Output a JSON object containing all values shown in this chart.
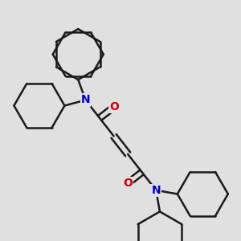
{
  "bg_color": "#e0e0e0",
  "bond_color": "#1a1a1a",
  "N_color": "#0000cc",
  "O_color": "#cc0000",
  "bond_width": 1.8,
  "fig_width": 3.0,
  "fig_height": 3.0,
  "dpi": 100,
  "N_label": "N",
  "O_label": "O",
  "fontsize": 10
}
